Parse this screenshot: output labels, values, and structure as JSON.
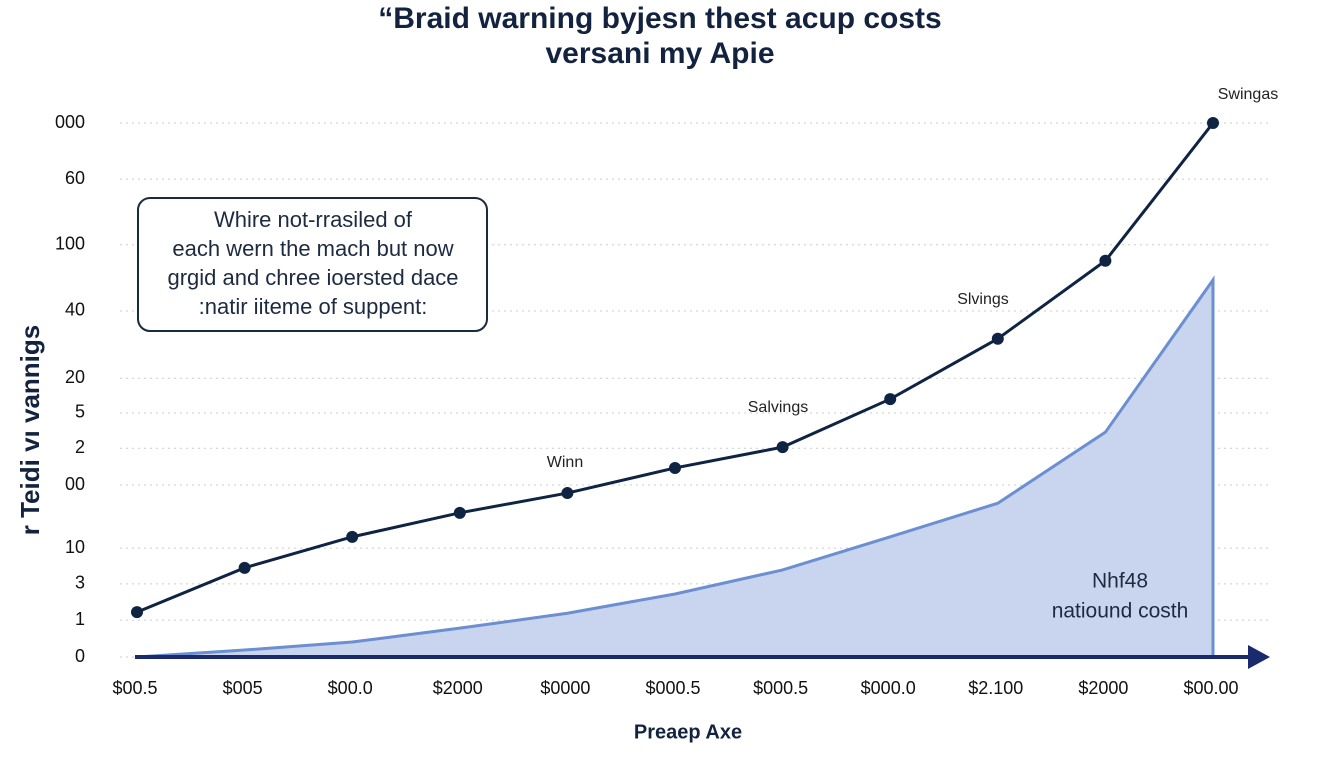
{
  "chart_data": {
    "type": "line",
    "title": [
      "“Braid warning byjesn thest acup costs",
      "versani my Apie"
    ],
    "y_label": "r Teidi vı vannigs",
    "x_label": "Preaep Axe",
    "categories": [
      "$00.5",
      "$005",
      "$00.0",
      "$2000",
      "$0000",
      "$000.5",
      "$000.5",
      "$000.0",
      "$2.100",
      "$2000",
      "$00.00"
    ],
    "series": [
      {
        "type": "line",
        "color": "#0f2342",
        "values": [
          8.4,
          16.7,
          22.5,
          27.0,
          30.7,
          35.4,
          39.3,
          48.3,
          59.6,
          74.2,
          100
        ]
      },
      {
        "type": "area",
        "name": "Nhf48",
        "description": "natiound costh",
        "color": "#6b8fd0",
        "fill": "#c9d5ee",
        "values": [
          0,
          1.3,
          2.8,
          5.4,
          8.2,
          11.8,
          16.3,
          22.5,
          28.8,
          42.1,
          70.6
        ]
      }
    ],
    "ylim": [
      0,
      100
    ],
    "yticks": [
      {
        "value": 100,
        "label": "000"
      },
      {
        "value": 89.5,
        "label": "60"
      },
      {
        "value": 77.2,
        "label": "100"
      },
      {
        "value": 64.8,
        "label": "40"
      },
      {
        "value": 52.2,
        "label": "20"
      },
      {
        "value": 45.7,
        "label": "5"
      },
      {
        "value": 39.1,
        "label": "2"
      },
      {
        "value": 32.2,
        "label": "00"
      },
      {
        "value": 20.4,
        "label": "10"
      },
      {
        "value": 13.7,
        "label": "3"
      },
      {
        "value": 6.9,
        "label": "1"
      },
      0
    ],
    "grid": true,
    "annotations": [
      "Swingas",
      "Slvings",
      "Salvings",
      "Winn"
    ],
    "note": [
      "Whire not-rrasiled of",
      "each wern the mach but now",
      "grgid and chree ioersted dace",
      ":natir iiteme of suppent:"
    ]
  }
}
